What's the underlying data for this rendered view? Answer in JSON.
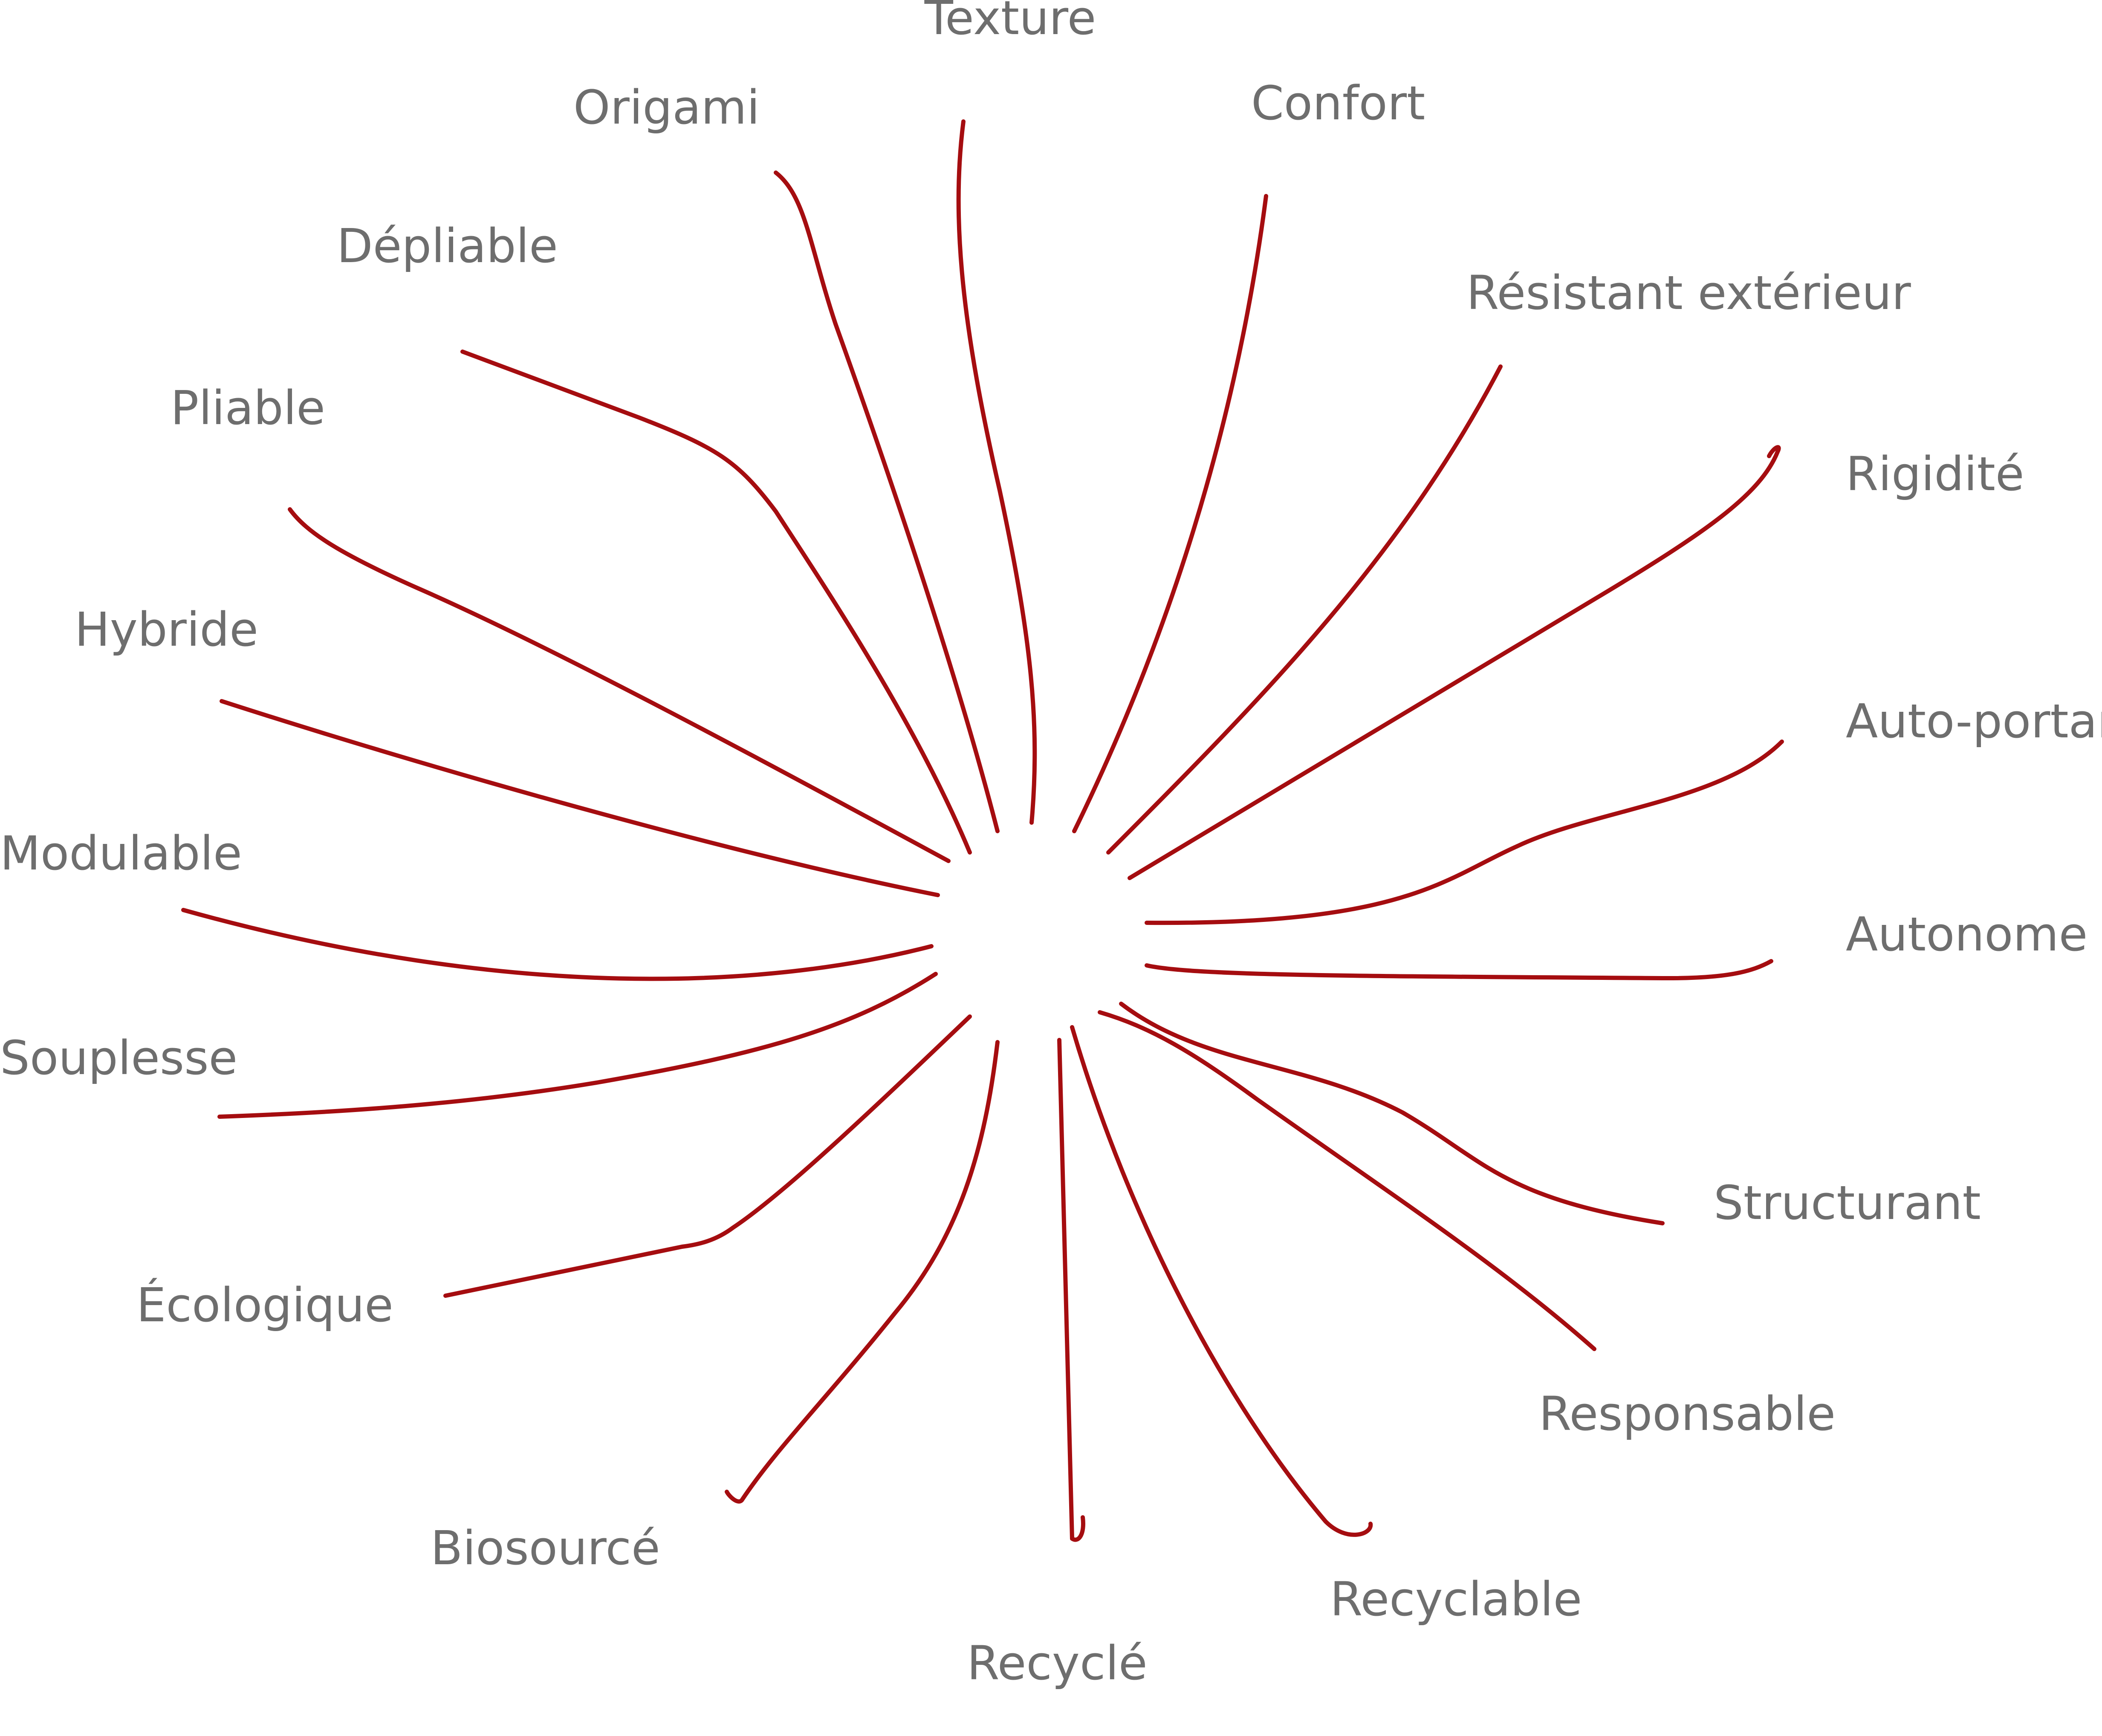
{
  "diagram": {
    "line_color": "#a50d10",
    "label_color": "#6e6e6e",
    "labels": [
      "Texture",
      "Confort",
      "Résistant extérieur",
      "Rigidité",
      "Auto-portant",
      "Autonome",
      "Structurant",
      "Responsable",
      "Recyclable",
      "Recyclé",
      "Biosourcé",
      "Écologique",
      "Souplesse",
      "Modulable",
      "Hybride",
      "Pliable",
      "Dépliable",
      "Origami"
    ]
  }
}
